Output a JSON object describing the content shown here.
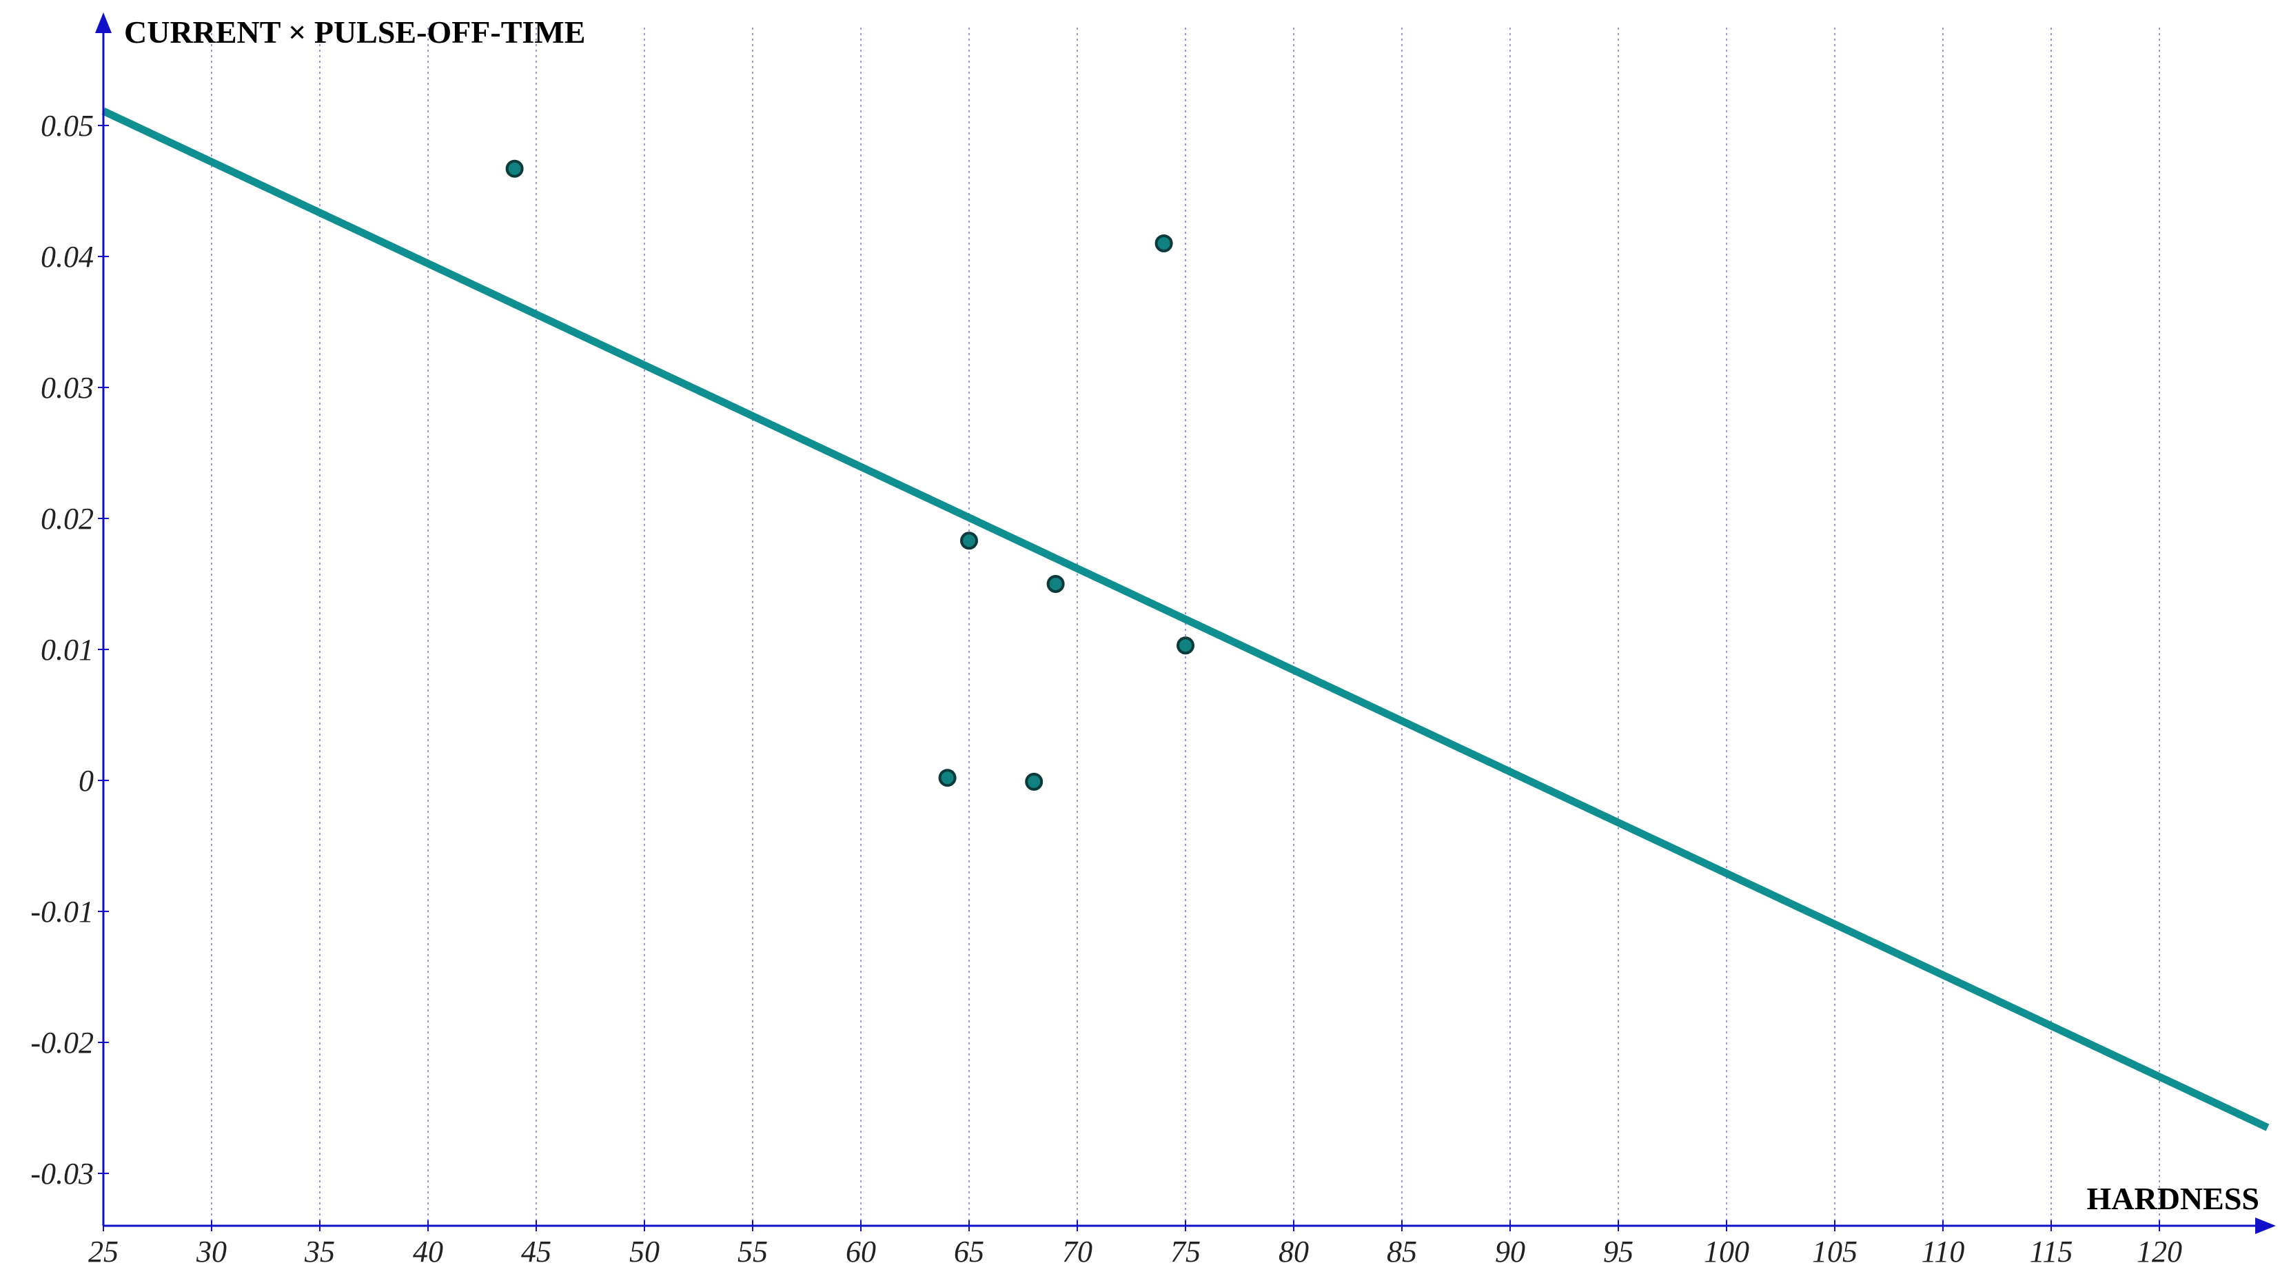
{
  "chart_data": {
    "type": "scatter",
    "xlabel": "HARDNESS",
    "ylabel": "CURRENT × PULSE-OFF-TIME",
    "xlim": [
      25,
      125
    ],
    "ylim": [
      -0.034,
      0.058
    ],
    "x_ticks": [
      25,
      30,
      35,
      40,
      45,
      50,
      55,
      60,
      65,
      70,
      75,
      80,
      85,
      90,
      95,
      100,
      105,
      110,
      115,
      120
    ],
    "y_ticks": [
      -0.03,
      -0.02,
      -0.01,
      0,
      0.01,
      0.02,
      0.03,
      0.04,
      0.05
    ],
    "x_tick_labels": [
      "25",
      "30",
      "35",
      "40",
      "45",
      "50",
      "55",
      "60",
      "65",
      "70",
      "75",
      "80",
      "85",
      "90",
      "95",
      "100",
      "105",
      "110",
      "115",
      "120"
    ],
    "y_tick_labels": [
      "-0.03",
      "-0.02",
      "-0.01",
      "0",
      "0.01",
      "0.02",
      "0.03",
      "0.04",
      "0.05"
    ],
    "grid": "vertical dotted",
    "points": [
      {
        "x": 44,
        "y": 0.0467
      },
      {
        "x": 74,
        "y": 0.041
      },
      {
        "x": 65,
        "y": 0.0183
      },
      {
        "x": 69,
        "y": 0.015
      },
      {
        "x": 75,
        "y": 0.0103
      },
      {
        "x": 64,
        "y": 0.0002
      },
      {
        "x": 68,
        "y": -0.0001
      }
    ],
    "trendline": {
      "x": [
        25,
        125
      ],
      "y": [
        0.0511,
        -0.0265
      ]
    },
    "colors": {
      "axis": "#1010c8",
      "grid": "#9999dd",
      "line": "#0f8f8f",
      "point_fill": "#108080",
      "point_stroke": "#0a3a3a"
    }
  }
}
